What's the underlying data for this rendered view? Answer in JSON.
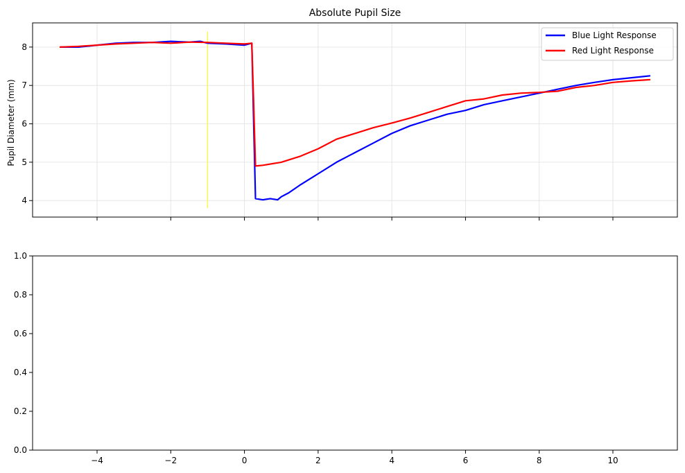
{
  "chart_data": [
    {
      "type": "line",
      "title": "Absolute Pupil Size",
      "xlabel": "",
      "ylabel": "Pupil Diameter (mm)",
      "xlim": [
        -5.75,
        11.75
      ],
      "ylim": [
        3.57,
        8.63
      ],
      "xticks": [
        -4,
        -2,
        0,
        2,
        4,
        6,
        8,
        10
      ],
      "yticks": [
        4,
        5,
        6,
        7,
        8
      ],
      "ytick_labels": [
        "4",
        "5",
        "6",
        "7",
        "8"
      ],
      "grid": true,
      "legend": "top-right",
      "series": [
        {
          "name": "Blue Light Response",
          "color": "#0000ff",
          "x": [
            -5.0,
            -4.5,
            -4.0,
            -3.5,
            -3.0,
            -2.5,
            -2.0,
            -1.5,
            -1.2,
            -1.0,
            -0.5,
            0.0,
            0.2,
            0.25,
            0.3,
            0.5,
            0.7,
            0.9,
            1.0,
            1.2,
            1.5,
            2.0,
            2.5,
            3.0,
            3.5,
            4.0,
            4.5,
            5.0,
            5.5,
            6.0,
            6.5,
            7.0,
            7.5,
            8.0,
            8.5,
            9.0,
            9.5,
            10.0,
            10.5,
            11.0
          ],
          "y": [
            8.0,
            8.0,
            8.05,
            8.1,
            8.12,
            8.12,
            8.15,
            8.13,
            8.15,
            8.1,
            8.08,
            8.05,
            8.1,
            6.0,
            4.05,
            4.02,
            4.05,
            4.02,
            4.1,
            4.2,
            4.4,
            4.7,
            5.0,
            5.25,
            5.5,
            5.75,
            5.95,
            6.1,
            6.25,
            6.35,
            6.5,
            6.6,
            6.7,
            6.8,
            6.9,
            7.0,
            7.08,
            7.15,
            7.2,
            7.25
          ]
        },
        {
          "name": "Red Light Response",
          "color": "#ff0000",
          "x": [
            -5.0,
            -4.5,
            -4.0,
            -3.5,
            -3.0,
            -2.5,
            -2.0,
            -1.5,
            -1.0,
            -0.5,
            0.0,
            0.2,
            0.25,
            0.3,
            0.5,
            1.0,
            1.5,
            2.0,
            2.5,
            3.0,
            3.5,
            4.0,
            4.5,
            5.0,
            5.5,
            6.0,
            6.5,
            7.0,
            7.5,
            8.0,
            8.5,
            9.0,
            9.5,
            10.0,
            10.5,
            11.0
          ],
          "y": [
            8.0,
            8.02,
            8.05,
            8.08,
            8.1,
            8.12,
            8.1,
            8.13,
            8.12,
            8.1,
            8.08,
            8.1,
            6.5,
            4.9,
            4.92,
            5.0,
            5.15,
            5.35,
            5.6,
            5.75,
            5.9,
            6.02,
            6.15,
            6.3,
            6.45,
            6.6,
            6.65,
            6.75,
            6.8,
            6.82,
            6.85,
            6.95,
            7.0,
            7.08,
            7.12,
            7.15
          ]
        }
      ],
      "annotations": [
        {
          "type": "vertical-line",
          "color": "#ffff00",
          "x": -1.0,
          "y_range": [
            3.8,
            8.4
          ]
        }
      ]
    },
    {
      "type": "line",
      "title": "",
      "xlabel": "",
      "ylabel": "",
      "xlim": [
        -5.75,
        11.75
      ],
      "ylim": [
        0.0,
        1.0
      ],
      "xticks": [
        -4,
        -2,
        0,
        2,
        4,
        6,
        8,
        10
      ],
      "xtick_labels": [
        "−4",
        "−2",
        "0",
        "2",
        "4",
        "6",
        "8",
        "10"
      ],
      "yticks": [
        0.0,
        0.2,
        0.4,
        0.6,
        0.8,
        1.0
      ],
      "ytick_labels": [
        "0.0",
        "0.2",
        "0.4",
        "0.6",
        "0.8",
        "1.0"
      ],
      "grid": false,
      "series": []
    }
  ]
}
